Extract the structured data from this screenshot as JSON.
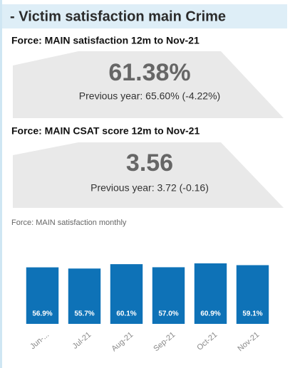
{
  "header": {
    "title": "- Victim satisfaction main Crime"
  },
  "kpis": [
    {
      "title": "Force: MAIN satisfaction 12m to Nov-21",
      "value": "61.38%",
      "previous": "Previous year: 65.60% (-4.22%)"
    },
    {
      "title": "Force: MAIN CSAT score 12m to Nov-21",
      "value": "3.56",
      "previous": "Previous year: 3.72 (-0.16)"
    }
  ],
  "chart_data": {
    "type": "bar",
    "title": "Force: MAIN satisfaction monthly",
    "categories": [
      "Jun-...",
      "Jul-21",
      "Aug-21",
      "Sep-21",
      "Oct-21",
      "Nov-21"
    ],
    "values": [
      56.9,
      55.7,
      60.1,
      57.0,
      60.9,
      59.1
    ],
    "value_labels": [
      "56.9%",
      "55.7%",
      "60.1%",
      "57.0%",
      "60.9%",
      "59.1%"
    ],
    "color": "#0e72b7"
  }
}
